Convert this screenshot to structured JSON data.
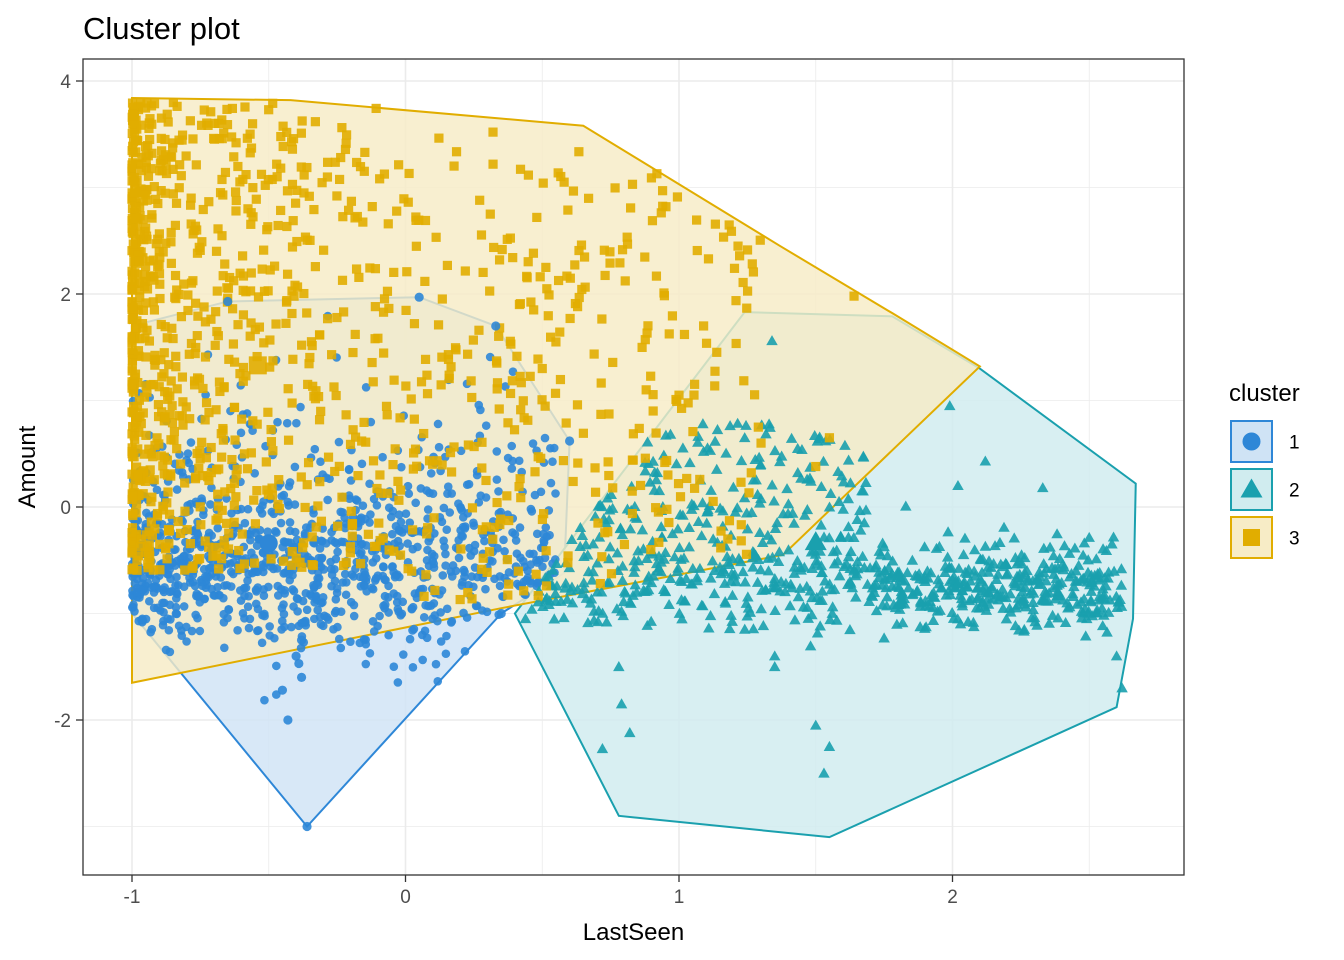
{
  "chart_data": {
    "type": "scatter",
    "title": "Cluster plot",
    "xlabel": "LastSeen",
    "ylabel": "Amount",
    "xlim": [
      -1.2,
      2.85
    ],
    "ylim": [
      -3.45,
      4.15
    ],
    "xticks": [
      -1,
      0,
      1,
      2
    ],
    "xtick_labels": [
      "-1",
      "0",
      "1",
      "2"
    ],
    "yticks": [
      -2,
      0,
      2,
      4
    ],
    "ytick_labels": [
      "-2",
      "0",
      "2",
      "4"
    ],
    "grid": true,
    "legend": {
      "title": "cluster",
      "placement": "right",
      "entries": [
        {
          "label": "1",
          "shape": "circle"
        },
        {
          "label": "2",
          "shape": "triangle"
        },
        {
          "label": "3",
          "shape": "square"
        }
      ]
    },
    "series": [
      {
        "name": "1",
        "color": "#2e87d7",
        "fill": "#cfe3f5",
        "shape": "circle",
        "hull": [
          [
            -1.0,
            1.7
          ],
          [
            -0.65,
            1.93
          ],
          [
            0.05,
            1.97
          ],
          [
            0.33,
            1.7
          ],
          [
            0.6,
            0.62
          ],
          [
            0.58,
            -0.62
          ],
          [
            0.35,
            -1.0
          ],
          [
            -0.36,
            -3.0
          ],
          [
            -1.0,
            -1.0
          ],
          [
            -1.0,
            1.7
          ]
        ],
        "center": [
          -0.5,
          -0.34
        ],
        "sample_points": [
          [
            -0.45,
            -1.72
          ],
          [
            -0.43,
            -2.0
          ],
          [
            -0.38,
            -1.6
          ],
          [
            -0.39,
            -1.47
          ],
          [
            -0.38,
            -1.25
          ],
          [
            -0.4,
            -1.4
          ],
          [
            0.35,
            -1.0
          ],
          [
            0.05,
            1.97
          ],
          [
            -0.65,
            1.93
          ],
          [
            0.33,
            1.7
          ],
          [
            0.6,
            0.62
          ],
          [
            -0.36,
            -3.0
          ]
        ]
      },
      {
        "name": "2",
        "color": "#1aa0ae",
        "fill": "#d0ecef",
        "shape": "triangle",
        "hull": [
          [
            0.4,
            -1.0
          ],
          [
            1.24,
            1.83
          ],
          [
            1.78,
            1.79
          ],
          [
            2.1,
            1.3
          ],
          [
            2.67,
            0.22
          ],
          [
            2.66,
            -1.05
          ],
          [
            2.6,
            -1.88
          ],
          [
            1.55,
            -3.1
          ],
          [
            0.78,
            -2.9
          ],
          [
            0.4,
            -1.0
          ]
        ],
        "sample_points": [
          [
            0.78,
            -1.5
          ],
          [
            0.79,
            -1.85
          ],
          [
            0.82,
            -2.12
          ],
          [
            0.72,
            -2.27
          ],
          [
            1.34,
            1.56
          ],
          [
            1.99,
            0.95
          ],
          [
            2.12,
            0.43
          ],
          [
            2.02,
            0.2
          ],
          [
            2.33,
            0.18
          ],
          [
            1.53,
            -2.5
          ],
          [
            1.5,
            -2.05
          ],
          [
            1.55,
            -2.25
          ],
          [
            2.6,
            -1.4
          ],
          [
            2.62,
            -1.7
          ],
          [
            1.35,
            -1.4
          ],
          [
            1.35,
            -1.5
          ]
        ]
      },
      {
        "name": "3",
        "color": "#e1ad00",
        "fill": "#f7ecc6",
        "shape": "square",
        "hull": [
          [
            -1.0,
            3.84
          ],
          [
            -0.42,
            3.82
          ],
          [
            0.65,
            3.58
          ],
          [
            1.37,
            2.45
          ],
          [
            1.78,
            1.82
          ],
          [
            2.1,
            1.32
          ],
          [
            1.38,
            -0.45
          ],
          [
            0.35,
            -0.95
          ],
          [
            -1.0,
            -1.65
          ],
          [
            -1.0,
            3.84
          ]
        ],
        "sample_points": [
          [
            1.64,
            1.98
          ],
          [
            0.83,
            3.03
          ],
          [
            0.94,
            2.97
          ],
          [
            0.58,
            3.05
          ],
          [
            1.09,
            1.7
          ],
          [
            1.02,
            1.62
          ],
          [
            0.32,
            3.52
          ],
          [
            0.31,
            2.75
          ],
          [
            0.55,
            1.55
          ],
          [
            1.29,
            0.75
          ],
          [
            1.0,
            1.05
          ],
          [
            0.88,
            1.1
          ],
          [
            1.3,
            0.6
          ],
          [
            1.5,
            0.38
          ],
          [
            1.55,
            0.65
          ],
          [
            0.5,
            1.3
          ]
        ]
      }
    ]
  }
}
